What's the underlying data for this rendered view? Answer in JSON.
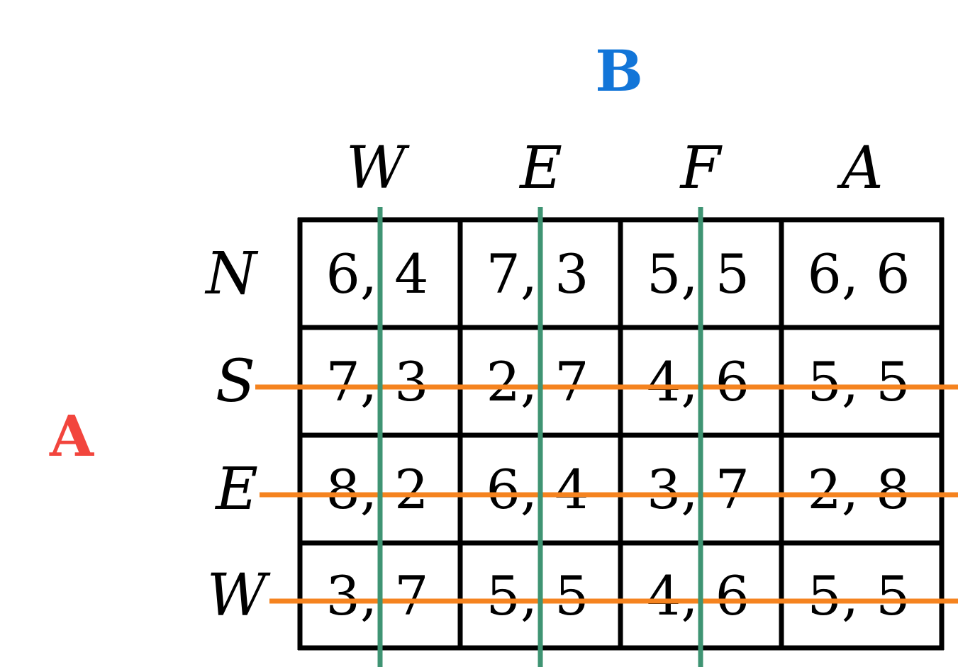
{
  "player_row": {
    "name": "A",
    "color": "#f2453d"
  },
  "player_col": {
    "name": "B",
    "color": "#1275d8"
  },
  "col_strategies": [
    "W",
    "E",
    "F",
    "A"
  ],
  "row_strategies": [
    "N",
    "S",
    "E",
    "W"
  ],
  "payoffs": [
    [
      "6, 4",
      "7, 3",
      "5, 5",
      "6, 6"
    ],
    [
      "7, 3",
      "2, 7",
      "4, 6",
      "5, 5"
    ],
    [
      "8, 2",
      "6, 4",
      "3, 7",
      "2, 8"
    ],
    [
      "3, 7",
      "5, 5",
      "4, 6",
      "5, 5"
    ]
  ],
  "crossed_rows": [
    1,
    2,
    3
  ],
  "crossed_cols": [
    0,
    1,
    2
  ],
  "row_line_color": "#f5831f",
  "col_line_color": "#3f9473",
  "grid_color": "#000000"
}
